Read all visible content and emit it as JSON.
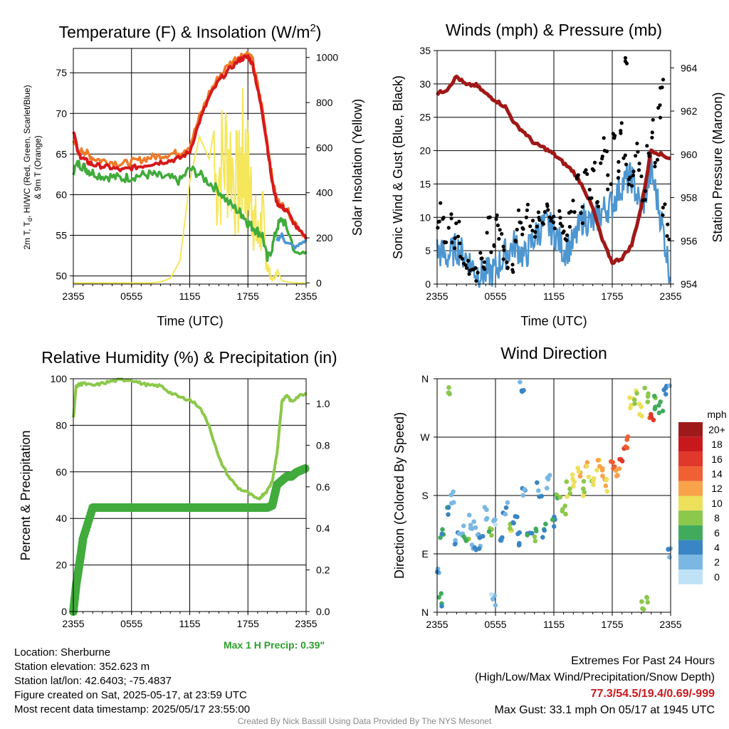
{
  "colors": {
    "temp": "#d7191c",
    "heat": "#f07a28",
    "dew": "#41ab3c",
    "t9": "#f07a28",
    "solar": "#f5e65a",
    "wind": "#4d96d0",
    "gust": "#000000",
    "pressure": "#a01818",
    "rh": "#8cc84b",
    "precip": "#41ab3c",
    "extremes": "#c8181e",
    "maxprecip": "#2b9e2b"
  },
  "panels": {
    "temp": {
      "title_main": "Temperature (F) & Insolation (W/m",
      "title_sup": "2",
      "title_end": ")",
      "ylabel_l1": "2m T, T",
      "ylabel_l1_sub": "d",
      "ylabel_l1_end": ", HI/WC (Red, Green, Scarlet/Blue)",
      "ylabel_l2": "& 9m T (Orange)",
      "ylabel_right": "Solar Insolation (Yellow)",
      "xlabel": "Time (UTC)"
    },
    "wind": {
      "title": "Winds (mph) & Pressure (mb)",
      "ylabel_left": "Sonic Wind & Gust (Blue, Black)",
      "ylabel_right": "Station Pressure (Maroon)",
      "xlabel": "Time (UTC)"
    },
    "rh": {
      "title": "Relative Humidity (%) & Precipitation (in)",
      "ylabel": "Percent & Precipitation",
      "max_precip": "Max 1 H Precip: 0.39\""
    },
    "dir": {
      "title": "Wind Direction",
      "ylabel": "Direction (Colored By Speed)",
      "legend_title": "mph"
    }
  },
  "info": {
    "location": "Location: Sherburne",
    "elevation": "Station elevation: 352.623 m",
    "latlon": "Station lat/lon: 42.6403; -75.4837",
    "created": "Figure created on Sat, 2025-05-17, at 23:59 UTC",
    "recent": "Most recent data timestamp: 2025/05/17 23:55:00"
  },
  "extremes": {
    "header": "Extremes For Past 24 Hours",
    "sub": "(High/Low/Max Wind/Precipitation/Snow Depth)",
    "values": "77.3/54.5/19.4/0.69/-999",
    "gust": "Max Gust: 33.1 mph On 05/17 at 1945 UTC"
  },
  "credit": "Created By Nick Bassill Using Data Provided By The NYS Mesonet",
  "chart_data": [
    {
      "type": "line",
      "name": "temperature_insolation",
      "x_ticks": [
        "2355",
        "0555",
        "1155",
        "1755",
        "2355"
      ],
      "x_hours": [
        0,
        24
      ],
      "y_left_ticks": [
        50,
        55,
        60,
        65,
        70,
        75
      ],
      "ylim_left": [
        49,
        78
      ],
      "y_right_ticks": [
        0,
        200,
        400,
        600,
        800,
        1000
      ],
      "ylim_right": [
        -5,
        1040
      ],
      "x": [
        0,
        0.5,
        1,
        1.5,
        2,
        3,
        4,
        5,
        6,
        7,
        8,
        9,
        10,
        11,
        12,
        13,
        14,
        15,
        16,
        17,
        17.5,
        18,
        18.5,
        19,
        19.5,
        20,
        20.5,
        21,
        21.5,
        22,
        23,
        24
      ],
      "series": [
        {
          "key": "temp",
          "axis": "left",
          "values": [
            68,
            65,
            64.5,
            64,
            63.7,
            63.5,
            63.3,
            63,
            63.3,
            63.5,
            63.8,
            64,
            64.2,
            64.5,
            65.3,
            69,
            72,
            74,
            75.3,
            76.5,
            76.8,
            77,
            76,
            73,
            70,
            66,
            61.5,
            59,
            58.5,
            58,
            56,
            54.5
          ]
        },
        {
          "key": "t9",
          "axis": "left",
          "values": [
            67,
            65,
            65.5,
            65,
            64.5,
            64.2,
            64,
            63.8,
            64,
            64.3,
            64.6,
            64.8,
            65,
            65.2,
            66,
            69.5,
            72.5,
            74.5,
            76,
            77,
            77.2,
            77.3,
            76.5,
            73.5,
            70.5,
            66.5,
            62,
            59.3,
            58.7,
            58.2,
            56.3,
            54.7
          ]
        },
        {
          "key": "dew",
          "axis": "left",
          "values": [
            63,
            63.8,
            63.5,
            63,
            62.7,
            62.3,
            62.2,
            62,
            62.2,
            62.4,
            62.5,
            62.2,
            62,
            61.7,
            63.2,
            62.5,
            61.5,
            60.5,
            59,
            58,
            57.5,
            56.5,
            56,
            55.5,
            55,
            52,
            53.5,
            56,
            57,
            56,
            52.5,
            53
          ]
        },
        {
          "key": "heat",
          "axis": "left",
          "values": [
            null,
            null,
            null,
            null,
            null,
            null,
            null,
            null,
            null,
            null,
            null,
            null,
            null,
            null,
            null,
            null,
            null,
            null,
            null,
            null,
            null,
            null,
            null,
            null,
            null,
            null,
            null,
            54.5,
            55,
            54,
            53.5,
            54.5
          ]
        },
        {
          "key": "solar",
          "axis": "right",
          "values": [
            0,
            0,
            0,
            0,
            0,
            0,
            0,
            0,
            0,
            0,
            0,
            5,
            20,
            100,
            450,
            650,
            550,
            800,
            950,
            650,
            900,
            750,
            550,
            300,
            450,
            120,
            20,
            60,
            10,
            5,
            0,
            0
          ]
        }
      ]
    },
    {
      "type": "line",
      "name": "winds_pressure",
      "x_ticks": [
        "2355",
        "0555",
        "1155",
        "1755",
        "2355"
      ],
      "y_left_ticks": [
        0,
        5,
        10,
        15,
        20,
        25,
        30,
        35
      ],
      "ylim_left": [
        0,
        35
      ],
      "y_right_ticks": [
        954,
        956,
        958,
        960,
        962,
        964
      ],
      "ylim_right": [
        954,
        964.8
      ],
      "x": [
        0,
        1,
        2,
        3,
        4,
        5,
        6,
        7,
        8,
        9,
        10,
        11,
        12,
        13,
        14,
        15,
        16,
        17,
        18,
        19,
        20,
        21,
        22,
        23,
        24
      ],
      "series": [
        {
          "key": "wind",
          "axis": "left",
          "values": [
            5,
            4,
            5.5,
            4,
            2,
            1.5,
            2,
            4.5,
            6,
            4,
            7,
            9,
            8,
            5,
            6,
            10,
            9,
            11,
            12,
            15,
            16,
            11,
            17,
            10,
            1
          ]
        },
        {
          "key": "pressure",
          "axis": "right",
          "values": [
            962.8,
            963,
            963.6,
            963.2,
            963.2,
            962.8,
            962.5,
            962.2,
            961.4,
            961,
            960.5,
            960.3,
            960,
            959.6,
            959.2,
            958.5,
            957.5,
            956,
            955,
            955.2,
            955.8,
            957.6,
            960.2,
            960,
            959.8
          ]
        }
      ],
      "gusts": [
        [
          0.2,
          8.9
        ],
        [
          0.5,
          11.0
        ],
        [
          0.9,
          7.2
        ],
        [
          1.3,
          9.1
        ],
        [
          1.7,
          6.3
        ],
        [
          2.1,
          8.3
        ],
        [
          2.5,
          5.1
        ],
        [
          2.9,
          3.9
        ],
        [
          3.3,
          2.2
        ],
        [
          3.7,
          2.8
        ],
        [
          4.1,
          1.9
        ],
        [
          4.5,
          3.3
        ],
        [
          4.9,
          2.7
        ],
        [
          5.3,
          9.1
        ],
        [
          5.7,
          6.2
        ],
        [
          6.1,
          10.3
        ],
        [
          6.5,
          8.1
        ],
        [
          6.9,
          4.4
        ],
        [
          7.3,
          3.3
        ],
        [
          7.7,
          2.9
        ],
        [
          8.1,
          6.7
        ],
        [
          8.5,
          9.6
        ],
        [
          8.9,
          7.9
        ],
        [
          9.3,
          11.0
        ],
        [
          9.7,
          8.9
        ],
        [
          10.1,
          8.2
        ],
        [
          10.5,
          10.7
        ],
        [
          10.9,
          9.5
        ],
        [
          11.3,
          11.7
        ],
        [
          11.7,
          10.2
        ],
        [
          12.1,
          9.0
        ],
        [
          12.5,
          10.1
        ],
        [
          12.9,
          8.6
        ],
        [
          13.3,
          7.8
        ],
        [
          13.7,
          9.4
        ],
        [
          14.1,
          12.2
        ],
        [
          14.5,
          15.4
        ],
        [
          14.9,
          10.3
        ],
        [
          15.3,
          16.2
        ],
        [
          15.7,
          14.3
        ],
        [
          16.1,
          18.1
        ],
        [
          16.5,
          12.3
        ],
        [
          16.9,
          19.6
        ],
        [
          17.3,
          21.2
        ],
        [
          17.7,
          15.5
        ],
        [
          18.1,
          22.3
        ],
        [
          18.5,
          16.9
        ],
        [
          18.9,
          23.9
        ],
        [
          19.3,
          18.2
        ],
        [
          19.7,
          14.9
        ],
        [
          20.1,
          16.2
        ],
        [
          20.5,
          20.2
        ],
        [
          20.9,
          17.2
        ],
        [
          21.3,
          13.1
        ],
        [
          21.7,
          19.9
        ],
        [
          22.1,
          23.2
        ],
        [
          22.5,
          17.3
        ],
        [
          22.9,
          26.3
        ],
        [
          23.3,
          11.6
        ],
        [
          23.7,
          8.1
        ],
        [
          19.4,
          33.1
        ],
        [
          23.1,
          30.7
        ]
      ]
    },
    {
      "type": "line",
      "name": "humidity_precipitation",
      "x_ticks": [
        "2355",
        "0555",
        "1155",
        "1755",
        "2355"
      ],
      "y_left_ticks": [
        0,
        20,
        40,
        60,
        80,
        100
      ],
      "ylim_left": [
        0,
        100
      ],
      "y_right_ticks": [
        "0.0",
        "0.2",
        "0.4",
        "0.6",
        "0.8",
        "1.0"
      ],
      "ylim_right": [
        0,
        1.12
      ],
      "x": [
        0,
        0.3,
        0.7,
        1,
        2,
        3,
        4,
        5,
        6,
        7,
        8,
        9,
        10,
        11,
        12,
        13,
        14,
        15,
        16,
        17,
        18,
        19,
        19.5,
        20,
        20.5,
        21,
        21.5,
        22,
        22.5,
        23,
        24
      ],
      "series": [
        {
          "key": "rh",
          "axis": "left",
          "values": [
            83,
            97,
            97.5,
            98,
            97,
            98,
            99,
            99.5,
            99.5,
            98,
            97,
            97,
            94,
            92,
            91,
            88,
            80,
            66,
            58,
            53,
            51,
            48,
            50,
            52,
            56,
            68,
            90,
            93,
            90,
            92,
            94
          ]
        },
        {
          "key": "precip",
          "axis": "right",
          "values": [
            0.0,
            0.13,
            0.25,
            0.35,
            0.5,
            0.5,
            0.5,
            0.5,
            0.5,
            0.5,
            0.5,
            0.5,
            0.5,
            0.5,
            0.5,
            0.5,
            0.5,
            0.5,
            0.5,
            0.5,
            0.5,
            0.5,
            0.5,
            0.5,
            0.51,
            0.61,
            0.63,
            0.65,
            0.65,
            0.67,
            0.69
          ]
        }
      ]
    },
    {
      "type": "scatter",
      "name": "wind_direction",
      "x_ticks": [
        "2355",
        "0555",
        "1155",
        "1755",
        "2355"
      ],
      "y_ticks": [
        "N",
        "E",
        "S",
        "W",
        "N"
      ],
      "ylim": [
        0,
        360
      ],
      "legend": {
        "labels": [
          "20+",
          "18",
          "16",
          "14",
          "12",
          "10",
          "8",
          "6",
          "4",
          "2",
          "0"
        ],
        "colors": [
          "#9e1a1a",
          "#c8181e",
          "#e0382a",
          "#f06032",
          "#f8a24a",
          "#ede05a",
          "#8cc84b",
          "#41ab5d",
          "#3a85c4",
          "#7ab8e3",
          "#c0e2f6"
        ],
        "placement": "right"
      },
      "points": [
        [
          0.2,
          62,
          3
        ],
        [
          0.5,
          120,
          5
        ],
        [
          1.0,
          155,
          4
        ],
        [
          1.5,
          180,
          2
        ],
        [
          2.0,
          112,
          3
        ],
        [
          2.5,
          130,
          2
        ],
        [
          3.0,
          118,
          6
        ],
        [
          3.5,
          140,
          1
        ],
        [
          4.0,
          128,
          2
        ],
        [
          4.5,
          110,
          3
        ],
        [
          5.0,
          150,
          2
        ],
        [
          5.5,
          122,
          7
        ],
        [
          6.0,
          135,
          1
        ],
        [
          6.5,
          118,
          3
        ],
        [
          7.0,
          160,
          2
        ],
        [
          7.5,
          125,
          8
        ],
        [
          8.0,
          140,
          4
        ],
        [
          8.5,
          115,
          3
        ],
        [
          9.0,
          180,
          2
        ],
        [
          9.5,
          130,
          4
        ],
        [
          10.0,
          118,
          6
        ],
        [
          10.5,
          190,
          3
        ],
        [
          11.0,
          125,
          5
        ],
        [
          11.5,
          200,
          2
        ],
        [
          12.0,
          140,
          4
        ],
        [
          12.5,
          175,
          6
        ],
        [
          13.0,
          160,
          7
        ],
        [
          13.5,
          190,
          8
        ],
        [
          14.0,
          205,
          9
        ],
        [
          14.5,
          215,
          10
        ],
        [
          15.0,
          190,
          8
        ],
        [
          15.5,
          220,
          10
        ],
        [
          16.0,
          205,
          9
        ],
        [
          16.5,
          230,
          11
        ],
        [
          17.0,
          215,
          12
        ],
        [
          17.5,
          195,
          10
        ],
        [
          18.0,
          232,
          13
        ],
        [
          18.5,
          210,
          12
        ],
        [
          19.0,
          245,
          15
        ],
        [
          19.5,
          265,
          14
        ],
        [
          20.0,
          320,
          10
        ],
        [
          20.5,
          330,
          8
        ],
        [
          21.0,
          310,
          9
        ],
        [
          21.5,
          335,
          7
        ],
        [
          22.0,
          305,
          14
        ],
        [
          22.5,
          325,
          6
        ],
        [
          23.0,
          315,
          5
        ],
        [
          23.5,
          338,
          3
        ],
        [
          24.0,
          342,
          2
        ],
        [
          0.4,
          20,
          5
        ],
        [
          1.2,
          345,
          7
        ],
        [
          3.8,
          95,
          2
        ],
        [
          5.8,
          20,
          1
        ],
        [
          8.7,
          350,
          3
        ],
        [
          21.2,
          5,
          7
        ],
        [
          21.4,
          15,
          8
        ],
        [
          24.0,
          90,
          2
        ]
      ]
    }
  ]
}
